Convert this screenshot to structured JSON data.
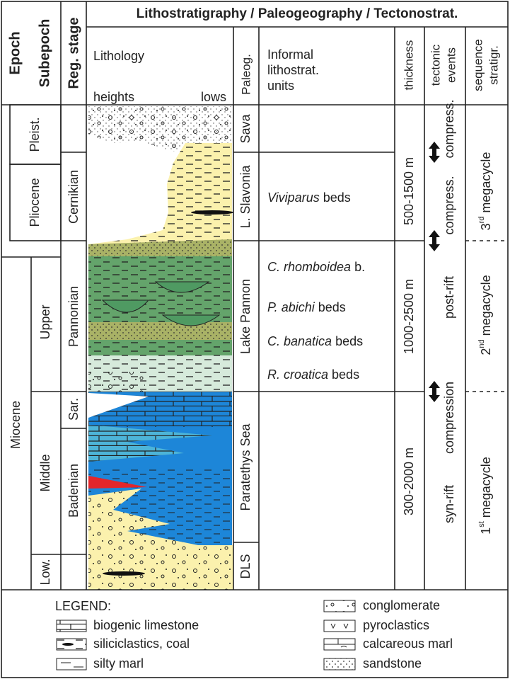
{
  "header": {
    "title": "Lithostratigraphy / Paleogeography / Tectonostrat.",
    "epoch": "Epoch",
    "subepoch": "Subepoch",
    "reg_stage": "Reg. stage",
    "lithology": "Lithology",
    "heights": "heights",
    "lows": "lows",
    "paleog": "Paleog.",
    "informal_units": [
      "Informal",
      "lithostrat.",
      "units"
    ],
    "thickness": "thickness",
    "tectonic_events": [
      "tectonic",
      "events"
    ],
    "sequence_stratigraphy": [
      "sequence",
      "stratigr."
    ]
  },
  "epochs": [
    "Pleist.",
    "Pliocene",
    "Miocene"
  ],
  "subepochs": [
    "Upper",
    "Middle",
    "Low."
  ],
  "regional_stages": [
    "Cernikian",
    "Pannonian",
    "Sar.",
    "Badenian"
  ],
  "paleogeography": [
    "Sava",
    "L. Slavonia",
    "Lake Pannon",
    "Paratethys Sea",
    "DLS"
  ],
  "informal_units": [
    {
      "italic": "Viviparus",
      "text": "beds"
    },
    {
      "italic": "C. rhomboidea",
      "text": "b."
    },
    {
      "italic": "P. abichi",
      "text": "beds"
    },
    {
      "italic": "C. banatica",
      "text": "beds"
    },
    {
      "italic": "R. croatica",
      "text": "beds"
    }
  ],
  "thickness": [
    "500-1500 m",
    "1000-2500 m",
    "300-2000 m"
  ],
  "tectonic_events": [
    "compress.",
    "compress.",
    "post-rift",
    "compression",
    "syn-rift"
  ],
  "megacycles": [
    {
      "number": "3",
      "suffix": "rd",
      "text": "megacycle"
    },
    {
      "number": "2",
      "suffix": "nd",
      "text": "megacycle"
    },
    {
      "number": "1",
      "suffix": "st",
      "text": "megacycle"
    }
  ],
  "legend": {
    "title": "LEGEND:",
    "items": [
      "biogenic limestone",
      "siliciclastics, coal",
      "silty marl",
      "conglomerate",
      "pyroclastics",
      "calcareous marl",
      "sandstone"
    ]
  }
}
